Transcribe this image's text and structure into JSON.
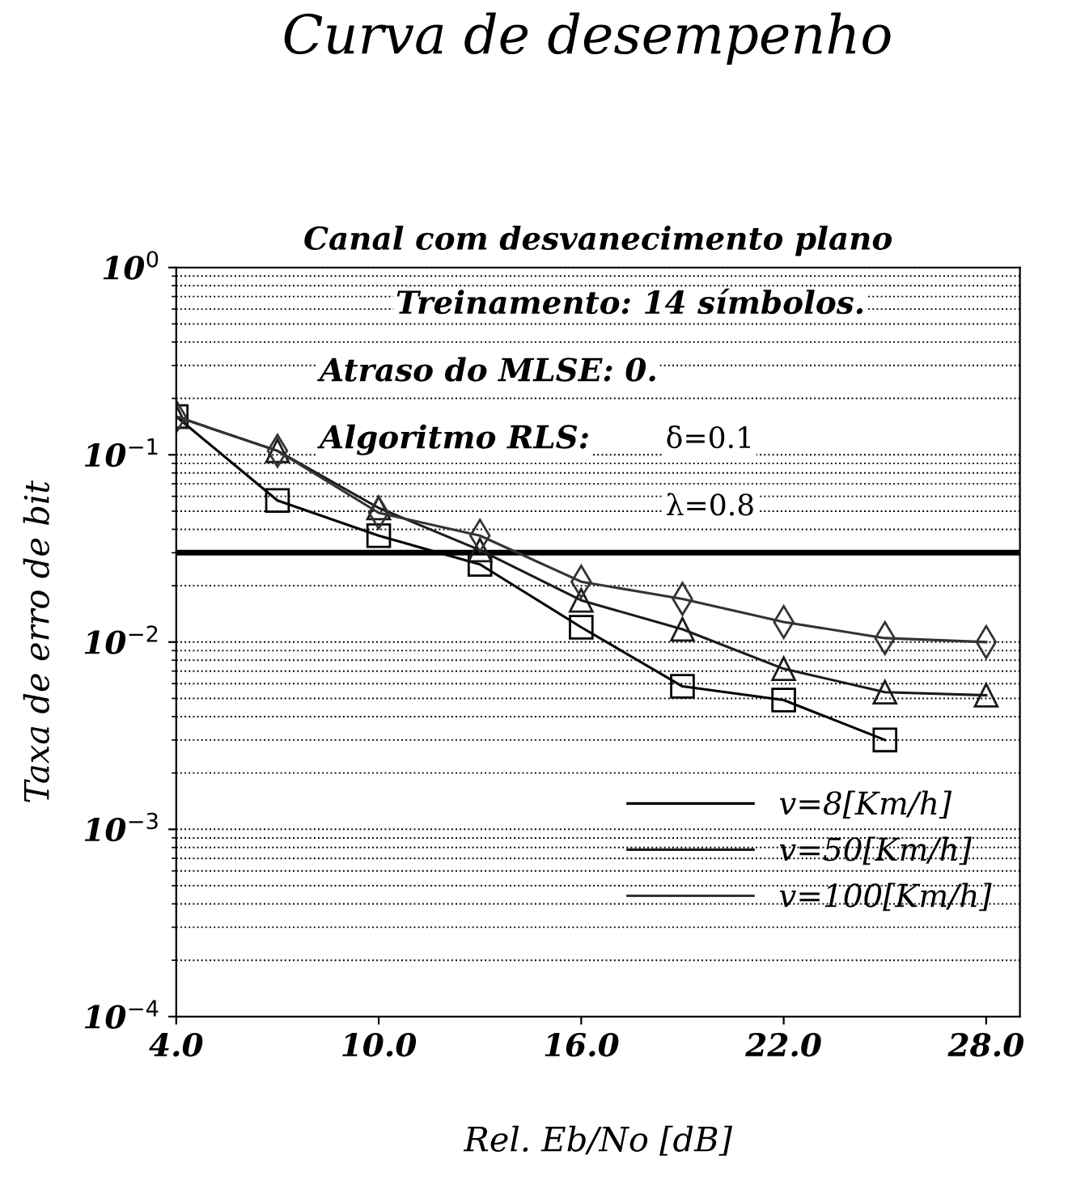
{
  "chart_data": {
    "type": "line",
    "title": "Curva de desempenho",
    "subtitle": "Canal com desvanecimento plano",
    "xlabel": "Rel. Eb/No [dB]",
    "ylabel": "Taxa de erro de bit",
    "x": [
      4,
      7,
      10,
      13,
      16,
      19,
      22,
      25,
      28
    ],
    "series": [
      {
        "name": "v=8[Km/h]",
        "color": "#000000",
        "marker": "square",
        "values": [
          0.16,
          0.057,
          0.037,
          0.026,
          0.012,
          0.0058,
          0.0049,
          0.003,
          null
        ]
      },
      {
        "name": "v=50[Km/h]",
        "color": "#1a1a1a",
        "marker": "triangle",
        "values": [
          0.16,
          0.105,
          0.052,
          0.031,
          0.0167,
          0.0117,
          0.0072,
          0.0054,
          0.0052
        ]
      },
      {
        "name": "v=100[Km/h]",
        "color": "#333333",
        "marker": "diamond",
        "values": [
          0.16,
          0.105,
          0.049,
          0.037,
          0.021,
          0.017,
          0.0128,
          0.0105,
          0.01
        ]
      }
    ],
    "log": "y",
    "xlim": [
      4,
      29
    ],
    "ylim": [
      0.0001,
      1
    ],
    "xticks": [
      {
        "value": 4,
        "label": "4.0"
      },
      {
        "value": 10,
        "label": "10.0"
      },
      {
        "value": 16,
        "label": "16.0"
      },
      {
        "value": 22,
        "label": "22.0"
      },
      {
        "value": 28,
        "label": "28.0"
      }
    ],
    "yticks": [
      {
        "value": 0.0001,
        "label": "10$^{−4}$"
      },
      {
        "value": 0.001,
        "label": "10$^{−3}$"
      },
      {
        "value": 0.01,
        "label": "10$^{−2}$"
      },
      {
        "value": 0.1,
        "label": "10$^{−1}$"
      },
      {
        "value": 1,
        "label": "10$^{0}$"
      }
    ],
    "ref_lines": [
      {
        "axis": "y",
        "value": 0.03,
        "color": "#000000"
      }
    ],
    "annotations": [
      "Treinamento: 14 símbolos.",
      "Atraso do MLSE: 0.",
      "Algoritmo RLS:",
      "δ=0.1",
      "λ=0.8"
    ],
    "grid": "y",
    "legend": "bottom right",
    "line_style": "solid"
  }
}
